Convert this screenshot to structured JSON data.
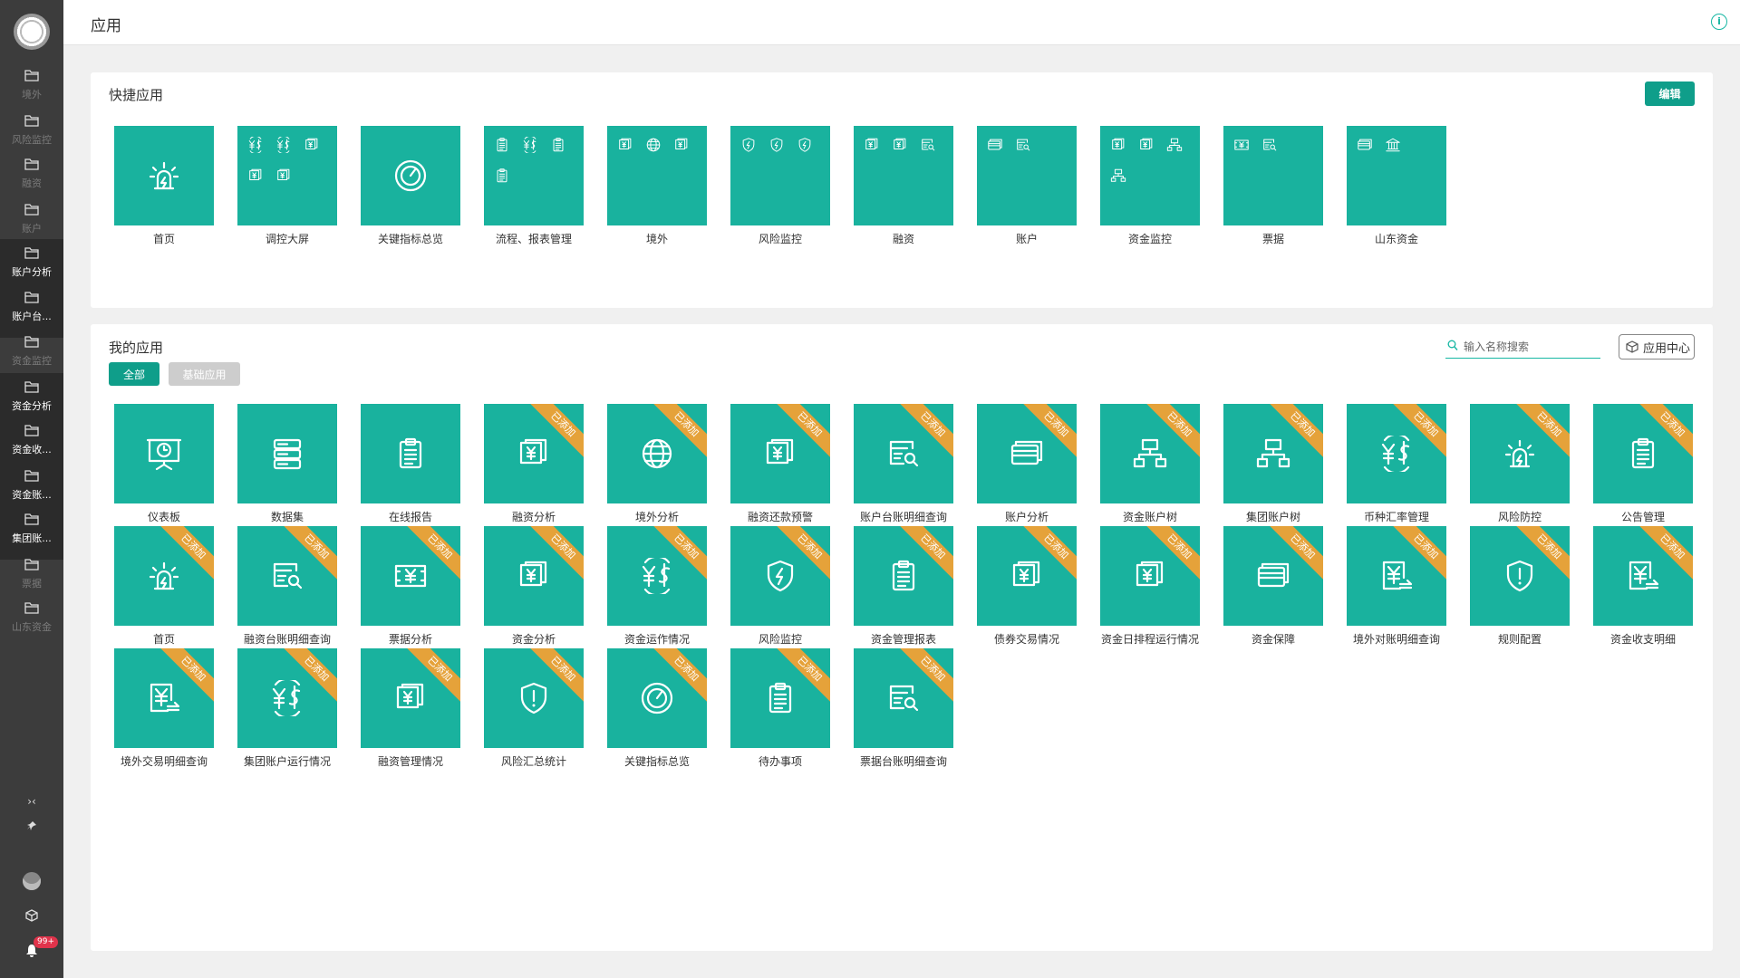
{
  "header": {
    "title": "应用"
  },
  "sidebar": {
    "items": [
      {
        "label": "境外",
        "style": "dim"
      },
      {
        "label": "风险监控",
        "style": "dim"
      },
      {
        "label": "融资",
        "style": "dim"
      },
      {
        "label": "账户",
        "style": "dim"
      },
      {
        "label": "账户分析",
        "style": "sub"
      },
      {
        "label": "账户台...",
        "style": "sub"
      },
      {
        "label": "资金监控",
        "style": "dim"
      },
      {
        "label": "资金分析",
        "style": "sub"
      },
      {
        "label": "资金收...",
        "style": "sub"
      },
      {
        "label": "资金账...",
        "style": "sub"
      },
      {
        "label": "集团账...",
        "style": "sub"
      },
      {
        "label": "票据",
        "style": "dim"
      },
      {
        "label": "山东资金",
        "style": "dim"
      }
    ],
    "bell_badge": "99+"
  },
  "quick": {
    "title": "快捷应用",
    "edit_label": "编辑",
    "apps": [
      {
        "name": "首页",
        "icons": [
          "alarm"
        ],
        "big": true
      },
      {
        "name": "调控大屏",
        "icons": [
          "yen-dollar",
          "yen-dollar",
          "money",
          "money",
          "money"
        ]
      },
      {
        "name": "关键指标总览",
        "icons": [
          "gauge"
        ],
        "big": true
      },
      {
        "name": "流程、报表管理",
        "icons": [
          "clipboard",
          "yen-dollar",
          "clipboard",
          "clipboard"
        ]
      },
      {
        "name": "境外",
        "icons": [
          "money",
          "globe",
          "money"
        ]
      },
      {
        "name": "风险监控",
        "icons": [
          "shield",
          "shield",
          "shield"
        ]
      },
      {
        "name": "融资",
        "icons": [
          "money",
          "money",
          "search-doc"
        ]
      },
      {
        "name": "账户",
        "icons": [
          "cards",
          "search-doc"
        ]
      },
      {
        "name": "资金监控",
        "icons": [
          "money",
          "money",
          "hierarchy",
          "hierarchy"
        ]
      },
      {
        "name": "票据",
        "icons": [
          "ticket",
          "search-doc"
        ]
      },
      {
        "name": "山东资金",
        "icons": [
          "cards",
          "bank"
        ]
      }
    ]
  },
  "mine": {
    "title": "我的应用",
    "filter_all": "全部",
    "filter_basic": "基础应用",
    "search_placeholder": "输入名称搜索",
    "app_center_label": "应用中心",
    "ribbon_label": "已添加",
    "apps": [
      {
        "name": "仪表板",
        "icon": "presentation",
        "added": false
      },
      {
        "name": "数据集",
        "icon": "dataset",
        "added": false
      },
      {
        "name": "在线报告",
        "icon": "clipboard",
        "added": false
      },
      {
        "name": "融资分析",
        "icon": "money",
        "added": true
      },
      {
        "name": "境外分析",
        "icon": "globe",
        "added": true
      },
      {
        "name": "融资还款预警",
        "icon": "money",
        "added": true
      },
      {
        "name": "账户台账明细查询",
        "icon": "search-doc",
        "added": true
      },
      {
        "name": "账户分析",
        "icon": "cards",
        "added": true
      },
      {
        "name": "资金账户树",
        "icon": "hierarchy",
        "added": true
      },
      {
        "name": "集团账户树",
        "icon": "hierarchy",
        "added": true
      },
      {
        "name": "币种汇率管理",
        "icon": "yen-dollar",
        "added": true
      },
      {
        "name": "风险防控",
        "icon": "alarm",
        "added": true
      },
      {
        "name": "公告管理",
        "icon": "clipboard",
        "added": true
      },
      {
        "name": "首页",
        "icon": "alarm",
        "added": true
      },
      {
        "name": "融资台账明细查询",
        "icon": "search-doc",
        "added": true
      },
      {
        "name": "票据分析",
        "icon": "ticket",
        "added": true
      },
      {
        "name": "资金分析",
        "icon": "money",
        "added": true
      },
      {
        "name": "资金运作情况",
        "icon": "yen-dollar",
        "added": true
      },
      {
        "name": "风险监控",
        "icon": "shield",
        "added": true
      },
      {
        "name": "资金管理报表",
        "icon": "clipboard",
        "added": true
      },
      {
        "name": "债券交易情况",
        "icon": "money",
        "added": true
      },
      {
        "name": "资金日排程运行情况",
        "icon": "money",
        "added": true
      },
      {
        "name": "资金保障",
        "icon": "cards",
        "added": true
      },
      {
        "name": "境外对账明细查询",
        "icon": "yen-doc",
        "added": true
      },
      {
        "name": "规则配置",
        "icon": "shield-alert",
        "added": true
      },
      {
        "name": "资金收支明细",
        "icon": "yen-doc",
        "added": true
      },
      {
        "name": "境外交易明细查询",
        "icon": "yen-doc",
        "added": true
      },
      {
        "name": "集团账户运行情况",
        "icon": "yen-dollar",
        "added": true
      },
      {
        "name": "融资管理情况",
        "icon": "money",
        "added": true
      },
      {
        "name": "风险汇总统计",
        "icon": "shield-alert",
        "added": true
      },
      {
        "name": "关键指标总览",
        "icon": "gauge",
        "added": true
      },
      {
        "name": "待办事项",
        "icon": "clipboard",
        "added": true
      },
      {
        "name": "票据台账明细查询",
        "icon": "search-doc",
        "added": true
      }
    ]
  },
  "colors": {
    "accent": "#19b29e",
    "ribbon": "#e5a23a",
    "sidebar": "#3c3c3c"
  }
}
